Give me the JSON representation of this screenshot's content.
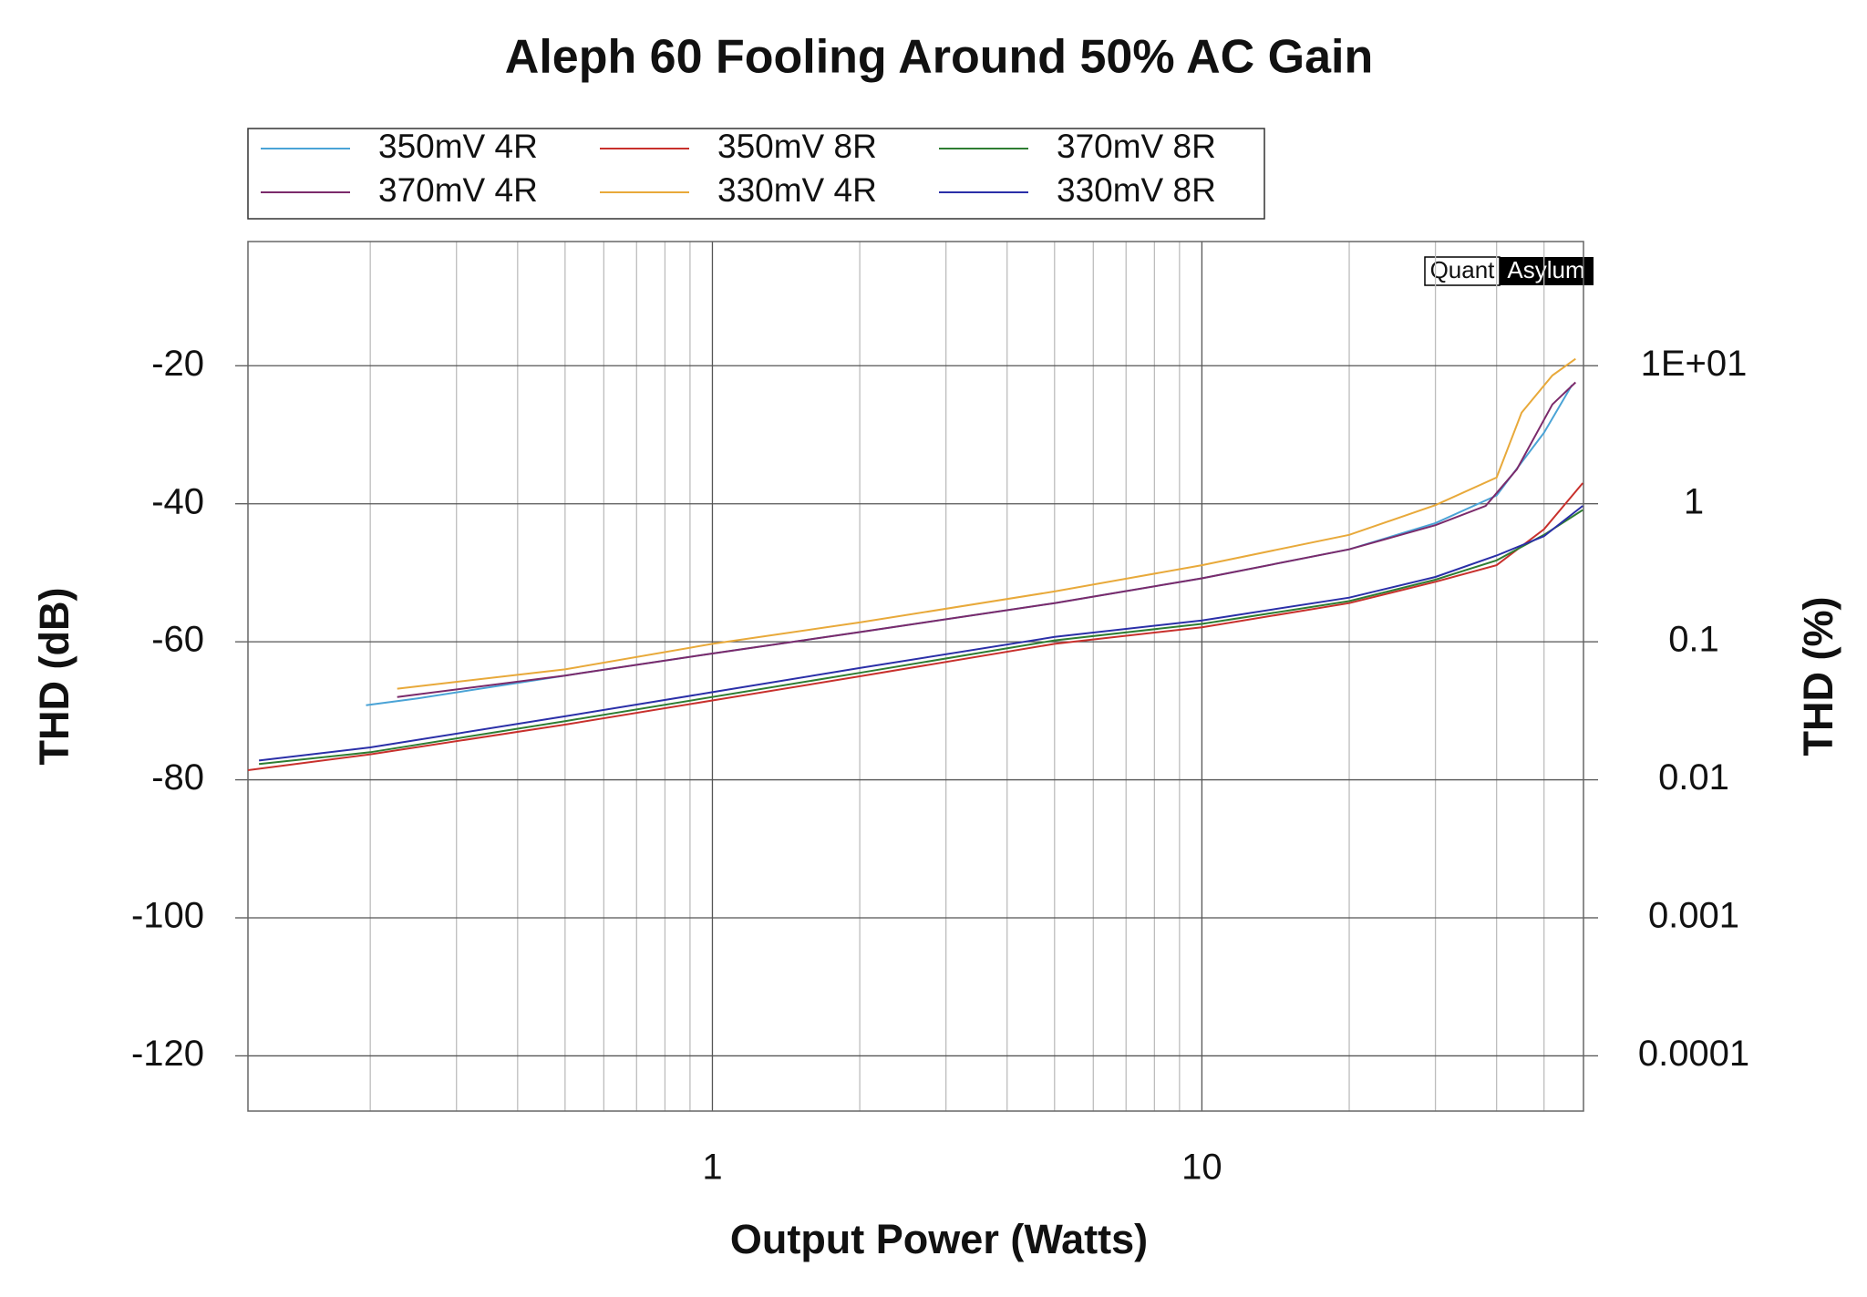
{
  "chart_data": {
    "type": "line",
    "title": "Aleph 60 Fooling Around 50% AC Gain",
    "xlabel": "Output Power (Watts)",
    "ylabel": "THD (dB)",
    "y2label": "THD (%)",
    "watermark": [
      "Quant",
      "Asylum"
    ],
    "xscale": "log",
    "y2scale": "log",
    "grid": true,
    "xlim": [
      0.1125,
      60.2
    ],
    "xticks": [
      1,
      10
    ],
    "xminorticks": [
      0.2,
      0.3,
      0.4,
      0.5,
      0.6,
      0.7,
      0.8,
      0.9,
      2,
      3,
      4,
      5,
      6,
      7,
      8,
      9,
      20,
      30,
      40,
      50
    ],
    "ylim": [
      -2,
      -128
    ],
    "yticks": [
      -20,
      -40,
      -60,
      -80,
      -100,
      -120
    ],
    "y2lim": [
      79.4,
      3.98e-05
    ],
    "y2ticks": [
      {
        "value": 10,
        "label": "1E+01"
      },
      1,
      0.1,
      0.01,
      0.001,
      0.0001
    ],
    "series": [
      {
        "name": "350mV 4R",
        "color": "#4aa3d6",
        "x": [
          0.196,
          0.25,
          0.5,
          1,
          2,
          5,
          10,
          20,
          30,
          40,
          50,
          57
        ],
        "values": [
          -69.2,
          -68.2,
          -64.9,
          -61.7,
          -58.6,
          -54.4,
          -50.8,
          -46.6,
          -42.8,
          -38.8,
          -29.7,
          -22.8
        ]
      },
      {
        "name": "370mV 4R",
        "color": "#7b2a6b",
        "x": [
          0.227,
          0.5,
          1,
          2,
          5,
          10,
          20,
          30,
          38,
          44,
          52,
          58
        ],
        "values": [
          -68.0,
          -64.9,
          -61.7,
          -58.6,
          -54.4,
          -50.8,
          -46.6,
          -43.1,
          -40.3,
          -35.0,
          -25.6,
          -22.4
        ]
      },
      {
        "name": "350mV 8R",
        "color": "#c8302c",
        "x": [
          0.1125,
          0.2,
          0.5,
          1,
          2,
          5,
          10,
          20,
          30,
          40,
          50,
          60
        ],
        "values": [
          -78.6,
          -76.3,
          -72.0,
          -68.5,
          -65.0,
          -60.3,
          -57.9,
          -54.4,
          -51.3,
          -48.9,
          -43.7,
          -37.0
        ]
      },
      {
        "name": "330mV 4R",
        "color": "#e8a93a",
        "x": [
          0.227,
          0.5,
          1,
          2,
          5,
          10,
          20,
          30,
          40,
          45,
          52,
          58
        ],
        "values": [
          -66.8,
          -64.0,
          -60.3,
          -57.2,
          -52.7,
          -48.9,
          -44.5,
          -40.2,
          -36.2,
          -26.8,
          -21.4,
          -19.0
        ]
      },
      {
        "name": "370mV 8R",
        "color": "#2e7d32",
        "x": [
          0.1185,
          0.2,
          0.5,
          1,
          2,
          5,
          10,
          20,
          30,
          40,
          50,
          60
        ],
        "values": [
          -77.7,
          -76.0,
          -71.5,
          -68.0,
          -64.5,
          -59.8,
          -57.4,
          -54.1,
          -51.0,
          -48.2,
          -44.5,
          -40.9
        ]
      },
      {
        "name": "330mV 8R",
        "color": "#2a2fa8",
        "x": [
          0.1185,
          0.2,
          0.5,
          1,
          2,
          5,
          10,
          20,
          30,
          40,
          50,
          60
        ],
        "values": [
          -77.2,
          -75.3,
          -70.8,
          -67.3,
          -63.8,
          -59.3,
          -56.9,
          -53.6,
          -50.6,
          -47.5,
          -44.7,
          -40.3
        ]
      }
    ]
  }
}
